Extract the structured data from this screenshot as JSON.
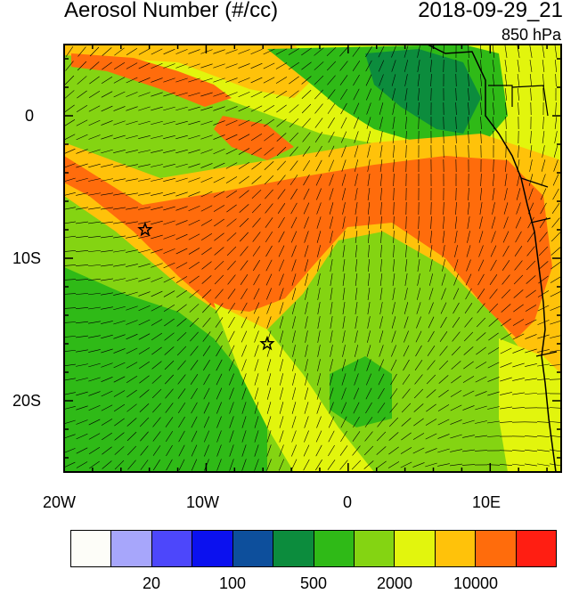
{
  "header": {
    "title": "Aerosol Number (#/cc)",
    "datetime": "2018-09-29_21",
    "level": "850 hPa"
  },
  "axes": {
    "x_ticks": [
      "20W",
      "10W",
      "0",
      "10E"
    ],
    "y_ticks": [
      "0",
      "10S",
      "20S"
    ]
  },
  "markers": [
    {
      "name": "star-marker",
      "lon": -14.3,
      "lat": -8.0
    },
    {
      "name": "star-marker",
      "lon": -5.7,
      "lat": -16.0
    }
  ],
  "colorbar": {
    "colors": [
      "#fdfdf8",
      "#a7a6fb",
      "#4d47fb",
      "#0b11ef",
      "#0d4f9c",
      "#0c8c3d",
      "#2fba17",
      "#84d412",
      "#e2f50d",
      "#ffc20a",
      "#ff6c0c",
      "#ff1e12"
    ],
    "labels": [
      "20",
      "100",
      "500",
      "2000",
      "10000"
    ]
  },
  "map_colors": {
    "green_dark": "#0c8c3d",
    "green": "#2fba17",
    "green_light": "#84d412",
    "yellow": "#e2f50d",
    "orange_light": "#ffc20a",
    "orange": "#ff6c0c",
    "land_outline": "#000000"
  }
}
